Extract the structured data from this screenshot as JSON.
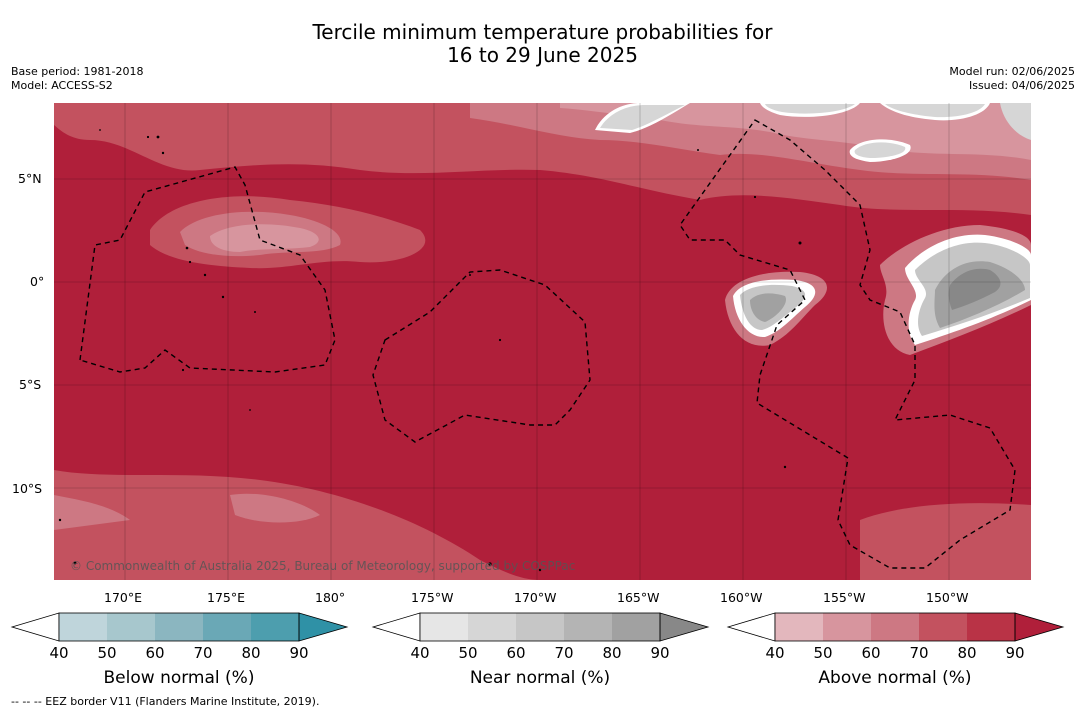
{
  "title_line1": "Tercile minimum temperature probabilities for",
  "title_line2": "16 to 29 June 2025",
  "base_period": "Base period: 1981-2018",
  "model": "Model: ACCESS-S2",
  "model_run": "Model run: 02/06/2025",
  "issued": "Issued: 04/06/2025",
  "copyright": "© Commonwealth of Australia 2025, Bureau of Meteorology, supported by COSPPac",
  "footer": "--  --  -- EEZ border V11 (Flanders Marine Institute, 2019).",
  "lat_labels": [
    "5°N",
    "0°",
    "5°S",
    "10°S"
  ],
  "lon_labels": [
    "170°E",
    "175°E",
    "180°",
    "175°W",
    "170°W",
    "165°W",
    "160°W",
    "155°W",
    "150°W"
  ],
  "colorbars": [
    {
      "label": "Below normal (%)",
      "ticks": [
        "40",
        "50",
        "60",
        "70",
        "80",
        "90"
      ],
      "colors": [
        "#ffffff",
        "#bfd5db",
        "#a7c7cd",
        "#8bb6c0",
        "#6aa8b6",
        "#4d9eae",
        "#2f91a6"
      ]
    },
    {
      "label": "Near normal (%)",
      "ticks": [
        "40",
        "50",
        "60",
        "70",
        "80",
        "90"
      ],
      "colors": [
        "#ffffff",
        "#e6e6e6",
        "#d6d6d6",
        "#c6c6c6",
        "#b4b4b4",
        "#a1a1a1",
        "#888888"
      ]
    },
    {
      "label": "Above normal (%)",
      "ticks": [
        "40",
        "50",
        "60",
        "70",
        "80",
        "90"
      ],
      "colors": [
        "#ffffff",
        "#e3b7bd",
        "#d7959e",
        "#cd7883",
        "#c3525f",
        "#b93346",
        "#b01f3a"
      ]
    }
  ]
}
